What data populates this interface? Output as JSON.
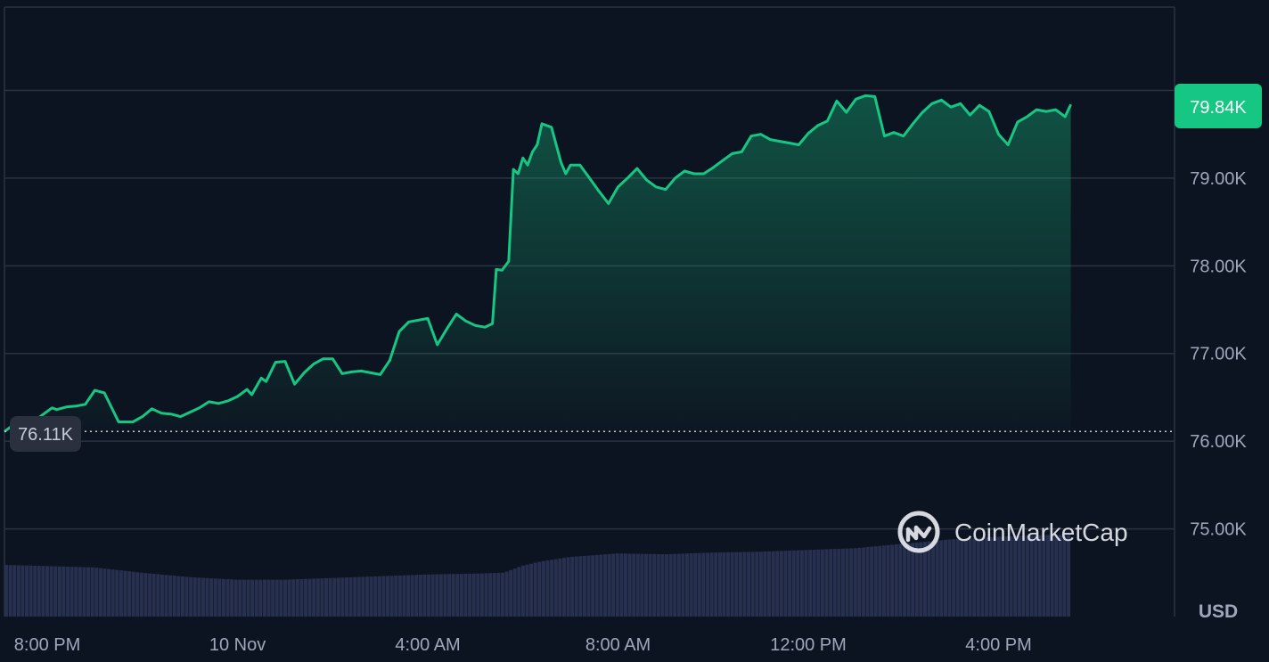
{
  "colors": {
    "background": "#0d1421",
    "line": "#16c784",
    "grid": "#2b3241",
    "volume": "#27304f",
    "label": "#a1a7bb"
  },
  "watermark": {
    "text": "CoinMarketCap",
    "icon": "coinmarketcap-logo-icon"
  },
  "chart_data": {
    "type": "line",
    "title": "",
    "xlabel": "",
    "ylabel": "",
    "unit": "USD",
    "current_price_label": "79.84K",
    "open_price_label": "76.11K",
    "open_price": 76110,
    "ylim": [
      74000,
      80950
    ],
    "xlim": [
      -0.45,
      11.85
    ],
    "y_ticks": [
      {
        "value": 75000,
        "label": "75.00K"
      },
      {
        "value": 76000,
        "label": "76.00K"
      },
      {
        "value": 77000,
        "label": "77.00K"
      },
      {
        "value": 78000,
        "label": "78.00K"
      },
      {
        "value": 79000,
        "label": "79.00K"
      }
    ],
    "x_ticks": [
      {
        "value": 0,
        "label": "8:00 PM"
      },
      {
        "value": 2,
        "label": "10 Nov"
      },
      {
        "value": 4,
        "label": "4:00 AM"
      },
      {
        "value": 6,
        "label": "8:00 AM"
      },
      {
        "value": 8,
        "label": "12:00 PM"
      },
      {
        "value": 10,
        "label": "4:00 PM"
      }
    ],
    "x_unit": "hours since 8:00 PM / 2",
    "series": [
      {
        "x": [
          -0.45,
          -0.3,
          -0.1,
          0.0,
          0.05,
          0.1,
          0.2,
          0.3,
          0.4,
          0.5,
          0.6,
          0.75,
          0.9,
          1.0,
          1.1,
          1.2,
          1.3,
          1.4,
          1.6,
          1.7,
          1.8,
          1.9,
          2.0,
          2.1,
          2.15,
          2.25,
          2.3,
          2.4,
          2.5,
          2.6,
          2.7,
          2.8,
          2.9,
          3.0,
          3.1,
          3.2,
          3.3,
          3.4,
          3.5,
          3.6,
          3.7,
          3.8,
          4.0,
          4.1,
          4.2,
          4.3,
          4.4,
          4.5,
          4.6,
          4.68,
          4.72,
          4.78,
          4.85,
          4.9,
          4.95,
          5.0,
          5.05,
          5.1,
          5.15,
          5.2,
          5.3,
          5.4,
          5.45,
          5.5,
          5.6,
          5.7,
          5.8,
          5.9,
          6.0,
          6.1,
          6.2,
          6.3,
          6.4,
          6.5,
          6.6,
          6.7,
          6.8,
          6.9,
          7.0,
          7.1,
          7.2,
          7.3,
          7.4,
          7.5,
          7.6,
          7.7,
          7.8,
          7.9,
          8.0,
          8.1,
          8.2,
          8.3,
          8.4,
          8.5,
          8.6,
          8.7,
          8.8,
          8.9,
          9.0,
          9.1,
          9.2,
          9.3,
          9.4,
          9.5,
          9.6,
          9.7,
          9.8,
          9.9,
          10.0,
          10.1,
          10.2,
          10.3,
          10.4,
          10.5,
          10.6,
          10.7,
          10.76
        ],
        "y": [
          76110,
          76230,
          76260,
          76340,
          76380,
          76360,
          76390,
          76400,
          76420,
          76580,
          76550,
          76220,
          76220,
          76280,
          76370,
          76320,
          76310,
          76280,
          76380,
          76450,
          76430,
          76460,
          76510,
          76590,
          76530,
          76720,
          76680,
          76900,
          76910,
          76650,
          76780,
          76880,
          76940,
          76940,
          76770,
          76790,
          76800,
          76780,
          76760,
          76920,
          77250,
          77360,
          77400,
          77100,
          77280,
          77450,
          77370,
          77320,
          77300,
          77340,
          77960,
          77950,
          78050,
          79100,
          79050,
          79230,
          79150,
          79300,
          79380,
          79620,
          79580,
          79180,
          79050,
          79150,
          79150,
          79000,
          78850,
          78710,
          78900,
          79000,
          79110,
          78980,
          78900,
          78870,
          79000,
          79080,
          79050,
          79050,
          79120,
          79200,
          79280,
          79300,
          79480,
          79500,
          79440,
          79420,
          79400,
          79380,
          79510,
          79600,
          79650,
          79880,
          79750,
          79900,
          79940,
          79930,
          79480,
          79520,
          79480,
          79620,
          79750,
          79850,
          79890,
          79810,
          79850,
          79720,
          79830,
          79760,
          79500,
          79380,
          79640,
          79700,
          79780,
          79760,
          79780,
          79700,
          79840
        ]
      }
    ],
    "volume": {
      "x": [
        -0.45,
        0.5,
        1.0,
        1.5,
        2.0,
        2.5,
        3.0,
        3.5,
        4.0,
        4.5,
        4.8,
        5.0,
        5.2,
        5.5,
        6.0,
        6.5,
        7.0,
        7.5,
        8.0,
        8.5,
        9.0,
        9.5,
        10.0,
        10.5,
        10.76
      ],
      "y": [
        74590,
        74560,
        74500,
        74450,
        74420,
        74420,
        74440,
        74460,
        74480,
        74490,
        74500,
        74580,
        74630,
        74680,
        74720,
        74710,
        74730,
        74740,
        74760,
        74780,
        74830,
        74880,
        74910,
        74930,
        74930
      ]
    }
  }
}
